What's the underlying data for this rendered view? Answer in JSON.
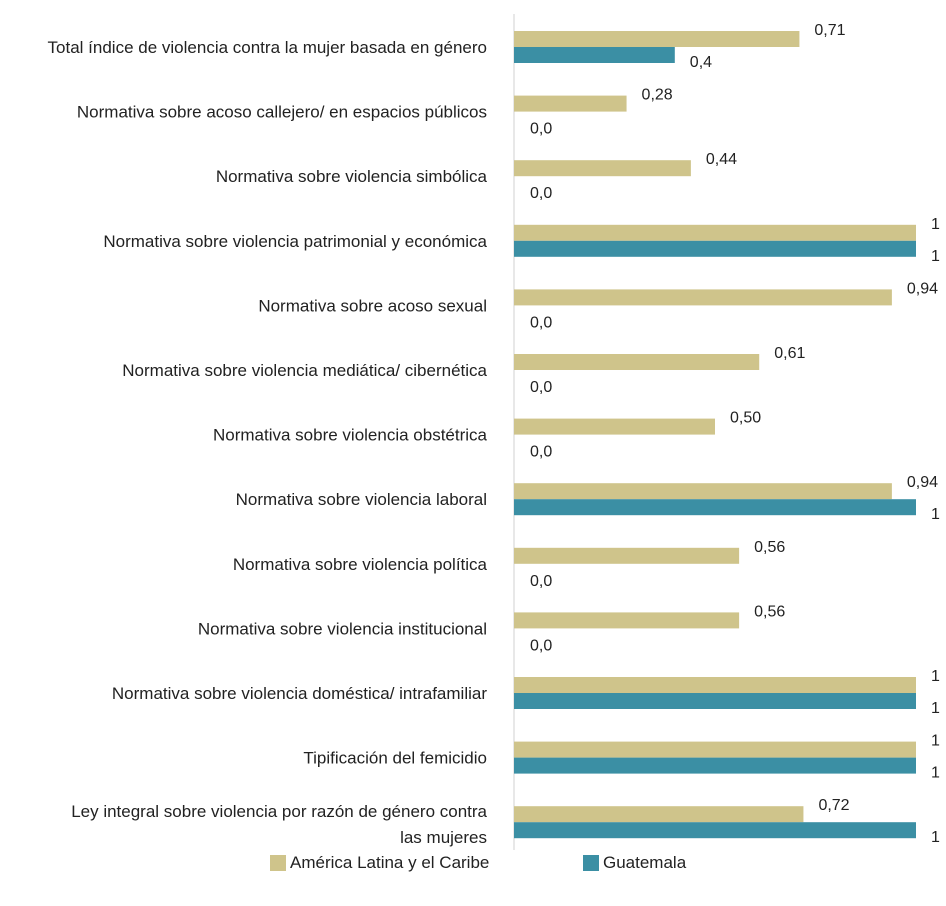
{
  "chart_data": {
    "type": "bar",
    "orientation": "horizontal",
    "categories": [
      "Total índice de violencia contra la mujer basada en género",
      "Normativa sobre acoso callejero/ en espacios públicos",
      "Normativa sobre violencia simbólica",
      "Normativa sobre violencia patrimonial y económica",
      "Normativa sobre acoso sexual",
      "Normativa sobre violencia mediática/ cibernética",
      "Normativa sobre violencia obstétrica",
      "Normativa sobre violencia laboral",
      "Normativa sobre violencia política",
      "Normativa sobre violencia institucional",
      "Normativa sobre violencia doméstica/ intrafamiliar",
      "Tipificación del femicidio",
      "Ley integral sobre violencia por razón de género contra las mujeres"
    ],
    "series": [
      {
        "name": "América Latina y el Caribe",
        "color": "#cfc48b",
        "values": [
          0.71,
          0.28,
          0.44,
          1,
          0.94,
          0.61,
          0.5,
          0.94,
          0.56,
          0.56,
          1,
          1,
          0.72
        ],
        "labels": [
          "0,71",
          "0,28",
          "0,44",
          "1",
          "0,94",
          "0,61",
          "0,50",
          "0,94",
          "0,56",
          "0,56",
          "1",
          "1",
          "0,72"
        ]
      },
      {
        "name": "Guatemala",
        "color": "#3b8fa4",
        "values": [
          0.4,
          0,
          0,
          1,
          0,
          0,
          0,
          1,
          0,
          0,
          1,
          1,
          1
        ],
        "labels": [
          "0,4",
          "0,0",
          "0,0",
          "1",
          "0,0",
          "0,0",
          "0,0",
          "1",
          "0,0",
          "0,0",
          "1",
          "1",
          "1"
        ]
      }
    ],
    "xlim": [
      0,
      1
    ],
    "grid": false,
    "legend_position": "bottom"
  }
}
